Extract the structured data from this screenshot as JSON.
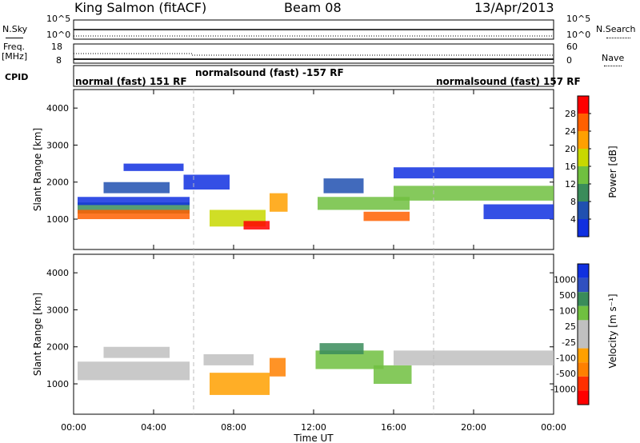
{
  "header": {
    "title": "King Salmon (fitACF)",
    "beam": "Beam 08",
    "date": "13/Apr/2013"
  },
  "left_labels": {
    "nsky": "N.Sky",
    "freq": "Freq.",
    "mhz": "[MHz]",
    "cpid": "CPID"
  },
  "right_labels": {
    "nsearch": "N.Search",
    "nave": "Nave"
  },
  "small_ticks": {
    "nsky_top": "10^5",
    "nsky_bottom": "10^0",
    "nsearch_top": "10^5",
    "nsearch_bottom": "10^0",
    "freq_top": "18",
    "freq_bottom": "8",
    "nave_top": "60",
    "nave_bottom": "0"
  },
  "cpid_modes": [
    {
      "label": "normal (fast) 151 RF",
      "start_hour": 0
    },
    {
      "label": "normalsound (fast) -157 RF",
      "start_hour": 6
    },
    {
      "label": "normalsound (fast) 157 RF",
      "start_hour": 18
    }
  ],
  "colors": {
    "power": [
      "#1030e0",
      "#2050b0",
      "#3a8c5a",
      "#70c040",
      "#c8d800",
      "#ffa000",
      "#ff6000",
      "#ff0000"
    ],
    "velocity": [
      "#1030e0",
      "#3050c0",
      "#3a8c5a",
      "#70c040",
      "#c0c0c0",
      "#c0c0c0",
      "#ffa000",
      "#ff8000",
      "#ff3000",
      "#ff0000"
    ]
  },
  "chart_data": {
    "type": "heatmap",
    "xlabel": "Time UT",
    "x_tick_labels": [
      "00:00",
      "04:00",
      "08:00",
      "12:00",
      "16:00",
      "20:00",
      "00:00"
    ],
    "x_range_hours": [
      0,
      24
    ],
    "panels": [
      {
        "ylabel": "Slant Range [km]",
        "y_range_km": [
          180,
          4500
        ],
        "y_ticks": [
          1000,
          2000,
          3000,
          4000
        ],
        "colorbar": {
          "label": "Power [dB]",
          "tick_labels": [
            "4",
            "8",
            "12",
            "16",
            "20",
            "24",
            "28"
          ]
        }
      },
      {
        "ylabel": "Slant Range [km]",
        "y_range_km": [
          180,
          4500
        ],
        "y_ticks": [
          1000,
          2000,
          3000,
          4000
        ],
        "colorbar": {
          "label": "Velocity [m s⁻¹]",
          "tick_labels": [
            "1000",
            "500",
            "100",
            "25",
            "-25",
            "-100",
            "-500",
            "-1000"
          ]
        }
      }
    ]
  }
}
